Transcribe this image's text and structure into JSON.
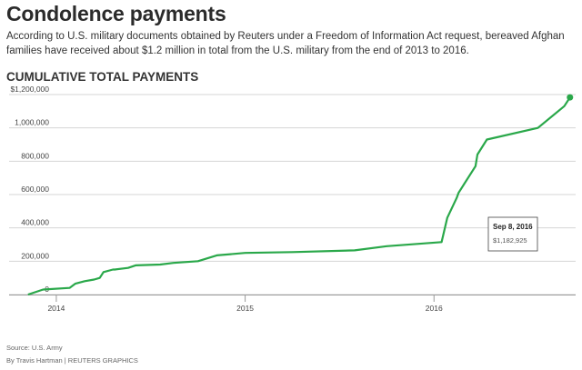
{
  "header": {
    "title": "Condolence payments",
    "description": "According to U.S. military documents obtained by Reuters under a Freedom of Information Act request, bereaved Afghan families have received about $1.2 million in total from the U.S. military from the end of 2013 to 2016."
  },
  "footer": {
    "source": "Source: U.S. Army",
    "credit": "By Travis Hartman | REUTERS GRAPHICS"
  },
  "chart_data": {
    "type": "line",
    "title": "CUMULATIVE TOTAL PAYMENTS",
    "xlabel": "",
    "ylabel": "",
    "x_ticks": [
      "2014",
      "2015",
      "2016"
    ],
    "x_tick_values": [
      2014.0,
      2015.0,
      2016.0
    ],
    "xlim": [
      2013.75,
      2016.75
    ],
    "ylim": [
      0,
      1200000
    ],
    "y_ticks": [
      0,
      200000,
      400000,
      600000,
      800000,
      1000000,
      1200000
    ],
    "y_tick_labels": [
      "0",
      "200,000",
      "400,000",
      "600,000",
      "800,000",
      "1,000,000",
      "$1,200,000"
    ],
    "grid": true,
    "line_color": "#2aa84a",
    "series": [
      {
        "x": [
          2013.85,
          2013.93,
          2014.07,
          2014.1,
          2014.15,
          2014.2,
          2014.23,
          2014.25,
          2014.3,
          2014.31,
          2014.38,
          2014.42,
          2014.55,
          2014.62,
          2014.75,
          2014.85,
          2015.0,
          2015.25,
          2015.58,
          2015.75,
          2016.04,
          2016.07,
          2016.12,
          2016.13,
          2016.22,
          2016.23,
          2016.28,
          2016.55,
          2016.69,
          2016.72
        ],
        "y": [
          0,
          30000,
          40000,
          65000,
          80000,
          90000,
          100000,
          135000,
          150000,
          150000,
          160000,
          175000,
          180000,
          190000,
          200000,
          235000,
          250000,
          255000,
          265000,
          290000,
          315000,
          460000,
          580000,
          610000,
          770000,
          840000,
          930000,
          1000000,
          1130000,
          1182925
        ]
      }
    ],
    "highlight": {
      "date": "Sep 8, 2016",
      "value": "$1,182,925",
      "x": 2016.72,
      "y": 1182925
    }
  }
}
